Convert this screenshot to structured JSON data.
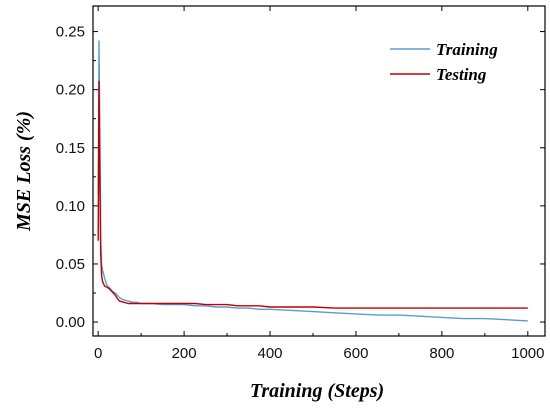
{
  "chart_data": {
    "type": "line",
    "xlabel": "Training (Steps)",
    "ylabel": "MSE Loss (%)",
    "xlim": [
      -12,
      1040
    ],
    "ylim": [
      -0.012,
      0.272
    ],
    "xticks": [
      0,
      200,
      400,
      600,
      800,
      1000
    ],
    "yticks": [
      0.0,
      0.05,
      0.1,
      0.15,
      0.2,
      0.25
    ],
    "xtick_labels": [
      "0",
      "200",
      "400",
      "600",
      "800",
      "1000"
    ],
    "ytick_labels": [
      "0.00",
      "0.05",
      "0.10",
      "0.15",
      "0.20",
      "0.25"
    ],
    "grid": false,
    "legend_position": "top-right",
    "series": [
      {
        "name": "Training",
        "color": "#5b9bd5",
        "x": [
          0,
          2,
          4,
          6,
          8,
          10,
          15,
          20,
          25,
          30,
          35,
          40,
          45,
          50,
          60,
          70,
          80,
          90,
          100,
          125,
          150,
          175,
          200,
          225,
          250,
          275,
          300,
          325,
          350,
          375,
          400,
          450,
          500,
          550,
          600,
          650,
          700,
          750,
          800,
          850,
          900,
          950,
          1000
        ],
        "values": [
          0.11,
          0.242,
          0.16,
          0.07,
          0.05,
          0.045,
          0.038,
          0.032,
          0.03,
          0.028,
          0.026,
          0.025,
          0.023,
          0.021,
          0.019,
          0.018,
          0.017,
          0.017,
          0.016,
          0.016,
          0.015,
          0.015,
          0.015,
          0.014,
          0.014,
          0.013,
          0.013,
          0.012,
          0.012,
          0.011,
          0.011,
          0.01,
          0.009,
          0.008,
          0.007,
          0.006,
          0.006,
          0.005,
          0.004,
          0.003,
          0.003,
          0.002,
          0.001
        ]
      },
      {
        "name": "Testing",
        "color": "#c00000",
        "x": [
          0,
          2,
          4,
          6,
          8,
          10,
          15,
          20,
          25,
          30,
          35,
          40,
          45,
          50,
          60,
          70,
          80,
          90,
          100,
          125,
          150,
          175,
          200,
          225,
          250,
          275,
          300,
          325,
          350,
          375,
          400,
          450,
          500,
          550,
          600,
          650,
          700,
          750,
          800,
          850,
          900,
          950,
          1000
        ],
        "values": [
          0.07,
          0.207,
          0.12,
          0.06,
          0.04,
          0.035,
          0.031,
          0.03,
          0.029,
          0.027,
          0.025,
          0.023,
          0.02,
          0.018,
          0.017,
          0.016,
          0.016,
          0.016,
          0.016,
          0.016,
          0.016,
          0.016,
          0.016,
          0.016,
          0.015,
          0.015,
          0.015,
          0.014,
          0.014,
          0.014,
          0.013,
          0.013,
          0.013,
          0.012,
          0.012,
          0.012,
          0.012,
          0.012,
          0.012,
          0.012,
          0.012,
          0.012,
          0.012
        ]
      }
    ]
  }
}
